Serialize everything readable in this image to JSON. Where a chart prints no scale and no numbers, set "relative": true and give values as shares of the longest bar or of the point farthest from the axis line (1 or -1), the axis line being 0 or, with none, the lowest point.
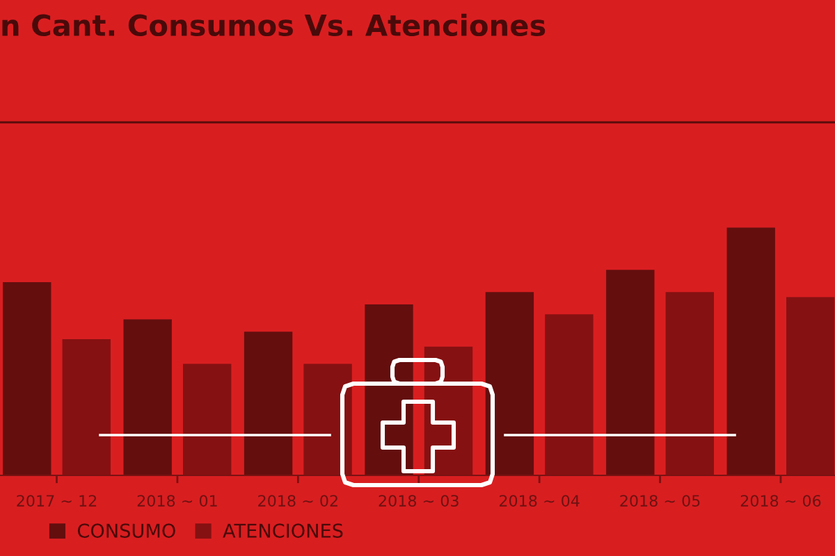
{
  "chart_data": {
    "type": "bar",
    "title": "n Cant. Consumos Vs. Atenciones",
    "categories": [
      "2017 ~ 12",
      "2018 ~ 01",
      "2018 ~ 02",
      "2018 ~ 03",
      "2018 ~ 04",
      "2018 ~ 05",
      "2018 ~ 06"
    ],
    "relative": true,
    "series": [
      {
        "name": "CONSUMO",
        "color": "#640e0e",
        "values": [
          0.78,
          0.63,
          0.58,
          0.69,
          0.74,
          0.83,
          1.0
        ]
      },
      {
        "name": "ATENCIONES",
        "color": "#861112",
        "values": [
          0.55,
          0.45,
          0.45,
          0.52,
          0.65,
          0.74,
          0.72
        ]
      }
    ],
    "legend": "bottom left"
  }
}
